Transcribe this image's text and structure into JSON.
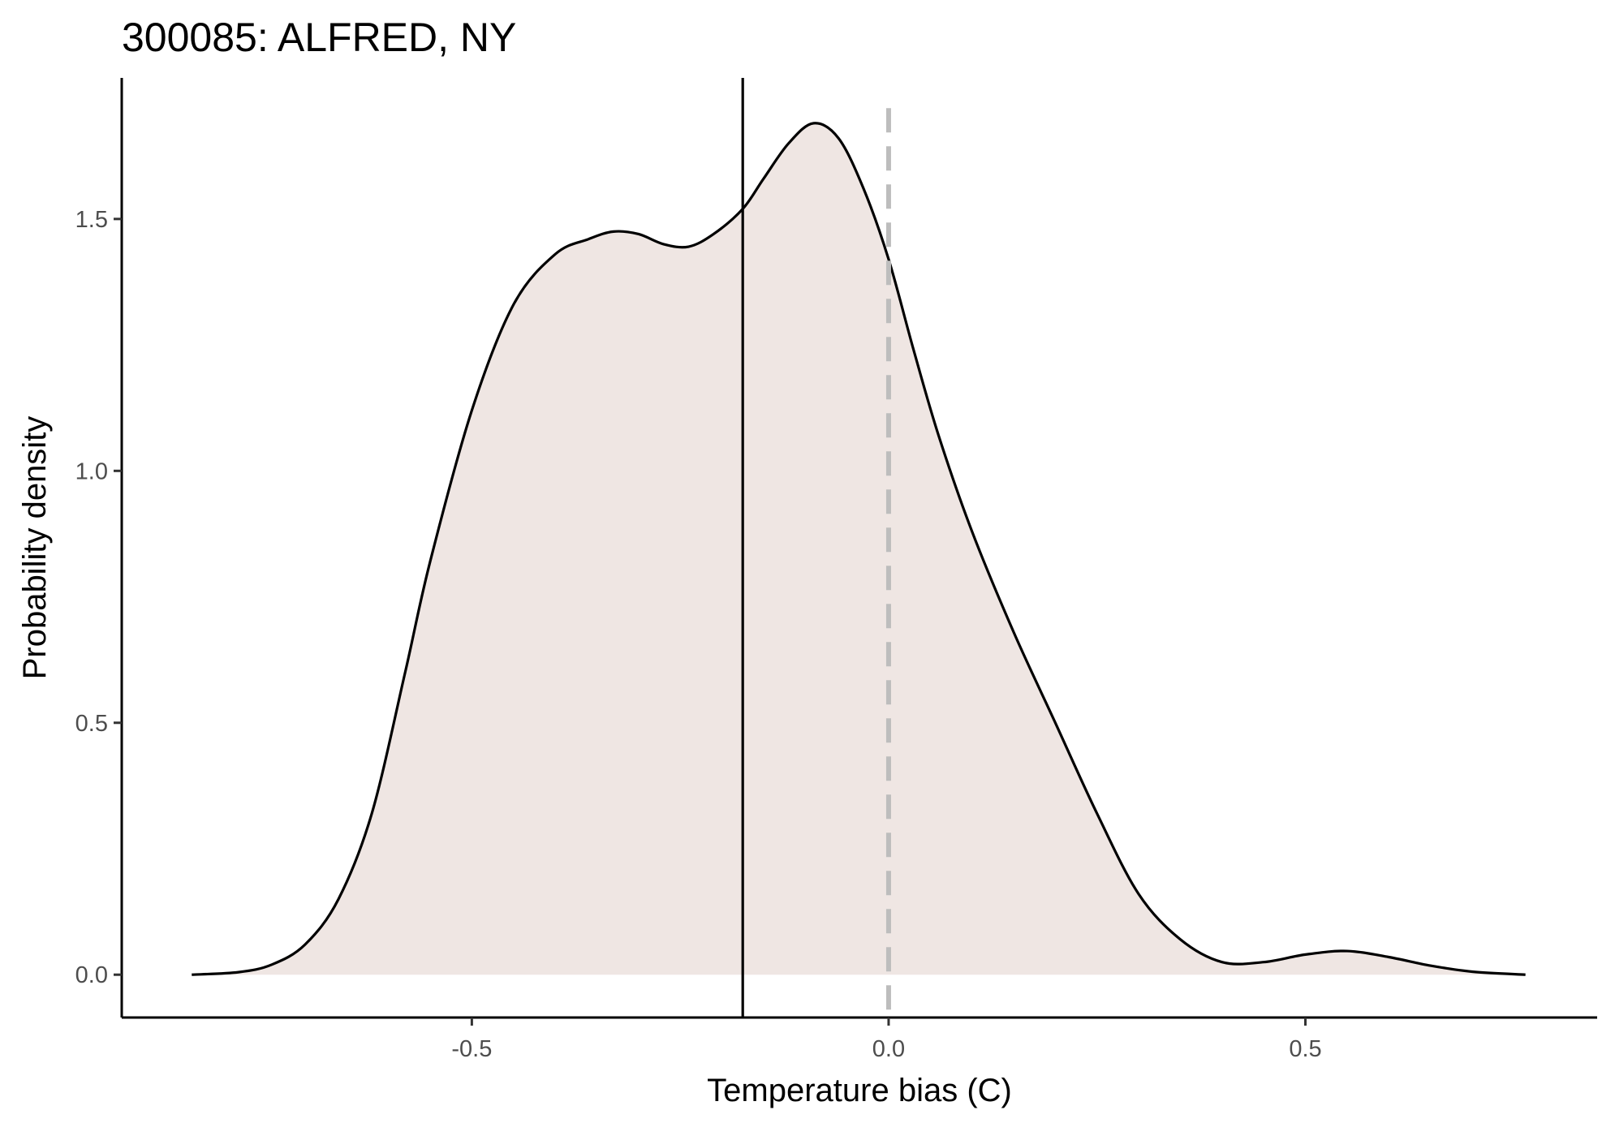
{
  "chart_data": {
    "type": "area",
    "title": "300085: ALFRED, NY",
    "xlabel": "Temperature bias (C)",
    "ylabel": "Probability density",
    "xlim": [
      -0.92,
      0.85
    ],
    "ylim": [
      -0.085,
      1.78
    ],
    "x_ticks": [
      -0.5,
      0.0,
      0.5
    ],
    "x_tick_labels": [
      "-0.5",
      "0.0",
      "0.5"
    ],
    "y_ticks": [
      0.0,
      0.5,
      1.0,
      1.5
    ],
    "y_tick_labels": [
      "0.0",
      "0.5",
      "1.0",
      "1.5"
    ],
    "grid": false,
    "fill_color": "#efe6e3",
    "line_color": "#000000",
    "mean_line": {
      "x": -0.175,
      "color": "#000000",
      "style": "solid"
    },
    "zero_line": {
      "x": 0.0,
      "color": "#bdbdbd",
      "style": "dashed"
    },
    "series": [
      {
        "x": [
          -0.836,
          -0.78,
          -0.74,
          -0.7,
          -0.66,
          -0.62,
          -0.58,
          -0.55,
          -0.5,
          -0.45,
          -0.4,
          -0.36,
          -0.33,
          -0.3,
          -0.27,
          -0.24,
          -0.21,
          -0.175,
          -0.15,
          -0.12,
          -0.09,
          -0.06,
          -0.03,
          0.0,
          0.03,
          0.06,
          0.1,
          0.15,
          0.2,
          0.25,
          0.3,
          0.35,
          0.4,
          0.45,
          0.5,
          0.55,
          0.6,
          0.65,
          0.7,
          0.764
        ],
        "y": [
          0.0,
          0.005,
          0.02,
          0.06,
          0.15,
          0.32,
          0.6,
          0.82,
          1.12,
          1.33,
          1.43,
          1.46,
          1.475,
          1.47,
          1.45,
          1.445,
          1.47,
          1.52,
          1.58,
          1.65,
          1.69,
          1.66,
          1.56,
          1.42,
          1.24,
          1.07,
          0.88,
          0.68,
          0.5,
          0.32,
          0.16,
          0.07,
          0.025,
          0.025,
          0.04,
          0.047,
          0.035,
          0.018,
          0.006,
          0.0
        ]
      }
    ]
  }
}
